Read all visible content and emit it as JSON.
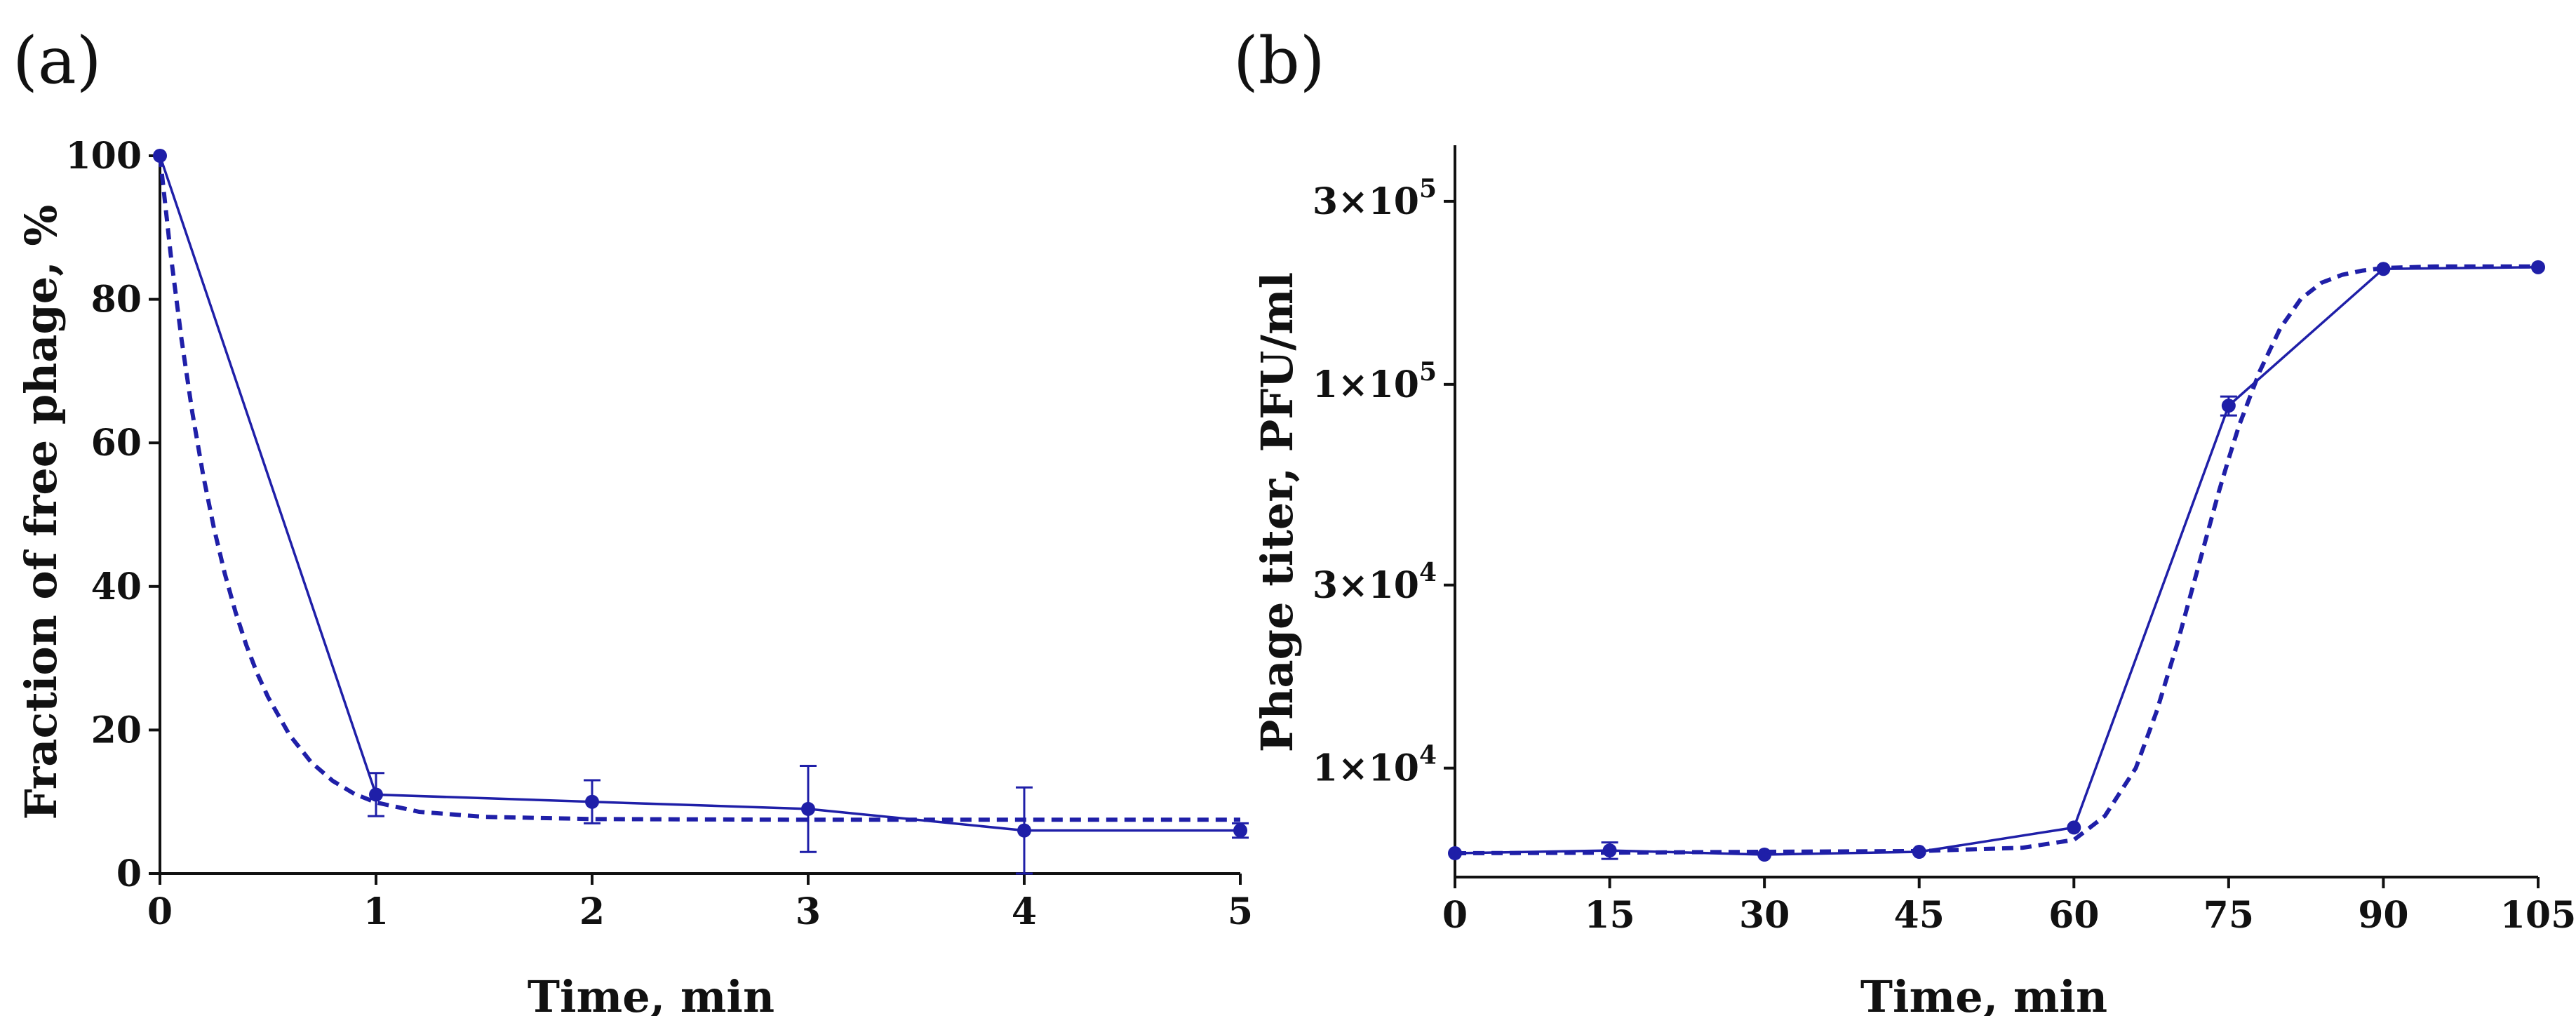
{
  "chart_data": [
    {
      "panel_label": "(a)",
      "type": "line",
      "xlabel": "Time, min",
      "ylabel": "Fraction of free phage, %",
      "xlim": [
        0,
        5
      ],
      "ylim": [
        0,
        100
      ],
      "xticks": [
        0,
        1,
        2,
        3,
        4,
        5
      ],
      "yticks": [
        0,
        20,
        40,
        60,
        80,
        100
      ],
      "xtick_labels": [
        "0",
        "1",
        "2",
        "3",
        "4",
        "5"
      ],
      "ytick_labels": [
        "0",
        "20",
        "40",
        "60",
        "80",
        "100"
      ],
      "scale": "linear",
      "grid": false,
      "color": "#1f1fa8",
      "series": [
        {
          "style": "solid-with-markers",
          "x": [
            0,
            1,
            2,
            3,
            4,
            5
          ],
          "y": [
            100,
            11,
            10,
            9,
            6,
            6
          ],
          "err": [
            0,
            3,
            3,
            6,
            6,
            1
          ]
        },
        {
          "style": "dashed-fit",
          "x": [
            0,
            0.05,
            0.1,
            0.15,
            0.2,
            0.25,
            0.3,
            0.35,
            0.4,
            0.45,
            0.5,
            0.6,
            0.7,
            0.8,
            0.9,
            1.0,
            1.2,
            1.5,
            2,
            3,
            4,
            5
          ],
          "y": [
            100,
            86.2,
            74.4,
            64.2,
            55.5,
            48.1,
            41.8,
            36.4,
            31.8,
            27.9,
            24.6,
            19.3,
            15.5,
            12.9,
            11.1,
            9.9,
            8.6,
            7.9,
            7.6,
            7.5,
            7.5,
            7.5
          ]
        }
      ]
    },
    {
      "panel_label": "(b)",
      "type": "line",
      "xlabel": "Time, min",
      "ylabel": "Phage titer, PFU/ml",
      "xlim": [
        0,
        105
      ],
      "ylim": [
        5200,
        420000
      ],
      "scale": "log-y",
      "xticks": [
        0,
        15,
        30,
        45,
        60,
        75,
        90,
        105
      ],
      "xtick_labels": [
        "0",
        "15",
        "30",
        "45",
        "60",
        "75",
        "90",
        "105"
      ],
      "yticks": [
        10000,
        30000,
        100000,
        300000
      ],
      "ytick_labels": [
        {
          "mantissa": "1×10",
          "exp": "4"
        },
        {
          "mantissa": "3×10",
          "exp": "4"
        },
        {
          "mantissa": "1×10",
          "exp": "5"
        },
        {
          "mantissa": "3×10",
          "exp": "5"
        }
      ],
      "grid": false,
      "color": "#1f1fa8",
      "series": [
        {
          "style": "solid-with-markers",
          "x": [
            0,
            15,
            30,
            45,
            60,
            75,
            90,
            105
          ],
          "y": [
            6000,
            6100,
            5950,
            6050,
            7000,
            88000,
            200000,
            202000
          ],
          "err": [
            0,
            300,
            0,
            0,
            0,
            5000,
            0,
            0
          ]
        },
        {
          "style": "dashed-fit",
          "x": [
            0,
            15,
            30,
            45,
            55,
            60,
            63,
            66,
            68,
            70,
            72,
            74,
            75,
            76,
            78,
            80,
            82,
            84,
            86,
            88,
            90,
            95,
            105
          ],
          "y": [
            6000,
            6020,
            6050,
            6080,
            6200,
            6500,
            7500,
            10000,
            14000,
            21000,
            33000,
            52000,
            64000,
            78000,
            108000,
            140000,
            167000,
            184000,
            193000,
            198000,
            201000,
            203000,
            203000
          ]
        }
      ]
    }
  ]
}
